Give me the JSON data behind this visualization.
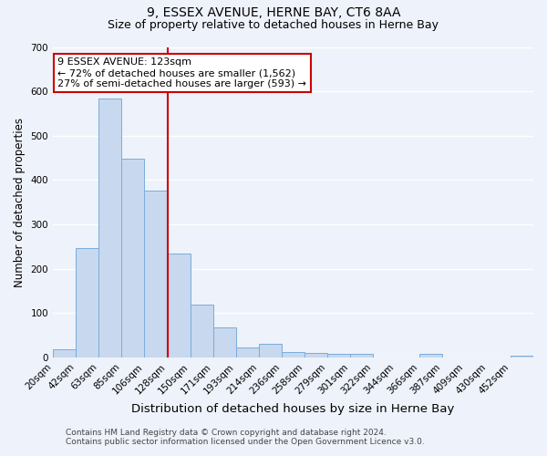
{
  "title": "9, ESSEX AVENUE, HERNE BAY, CT6 8AA",
  "subtitle": "Size of property relative to detached houses in Herne Bay",
  "xlabel": "Distribution of detached houses by size in Herne Bay",
  "ylabel": "Number of detached properties",
  "bar_labels": [
    "20sqm",
    "42sqm",
    "63sqm",
    "85sqm",
    "106sqm",
    "128sqm",
    "150sqm",
    "171sqm",
    "193sqm",
    "214sqm",
    "236sqm",
    "258sqm",
    "279sqm",
    "301sqm",
    "322sqm",
    "344sqm",
    "366sqm",
    "387sqm",
    "409sqm",
    "430sqm",
    "452sqm"
  ],
  "bar_values": [
    18,
    247,
    583,
    449,
    376,
    235,
    120,
    67,
    22,
    30,
    13,
    10,
    8,
    8,
    0,
    0,
    8,
    0,
    0,
    0,
    5
  ],
  "bar_color": "#c8d8ee",
  "bar_edge_color": "#7aaddb",
  "ylim": [
    0,
    700
  ],
  "yticks": [
    0,
    100,
    200,
    300,
    400,
    500,
    600,
    700
  ],
  "vline_color": "#cc0000",
  "vline_bin": 5,
  "annotation_title": "9 ESSEX AVENUE: 123sqm",
  "annotation_line1": "← 72% of detached houses are smaller (1,562)",
  "annotation_line2": "27% of semi-detached houses are larger (593) →",
  "annotation_box_facecolor": "#ffffff",
  "annotation_box_edgecolor": "#cc0000",
  "footer_line1": "Contains HM Land Registry data © Crown copyright and database right 2024.",
  "footer_line2": "Contains public sector information licensed under the Open Government Licence v3.0.",
  "background_color": "#eef2fa",
  "grid_color": "#ffffff",
  "title_fontsize": 10,
  "subtitle_fontsize": 9,
  "xlabel_fontsize": 9.5,
  "ylabel_fontsize": 8.5,
  "tick_fontsize": 7.5,
  "annotation_fontsize": 8,
  "footer_fontsize": 6.5
}
